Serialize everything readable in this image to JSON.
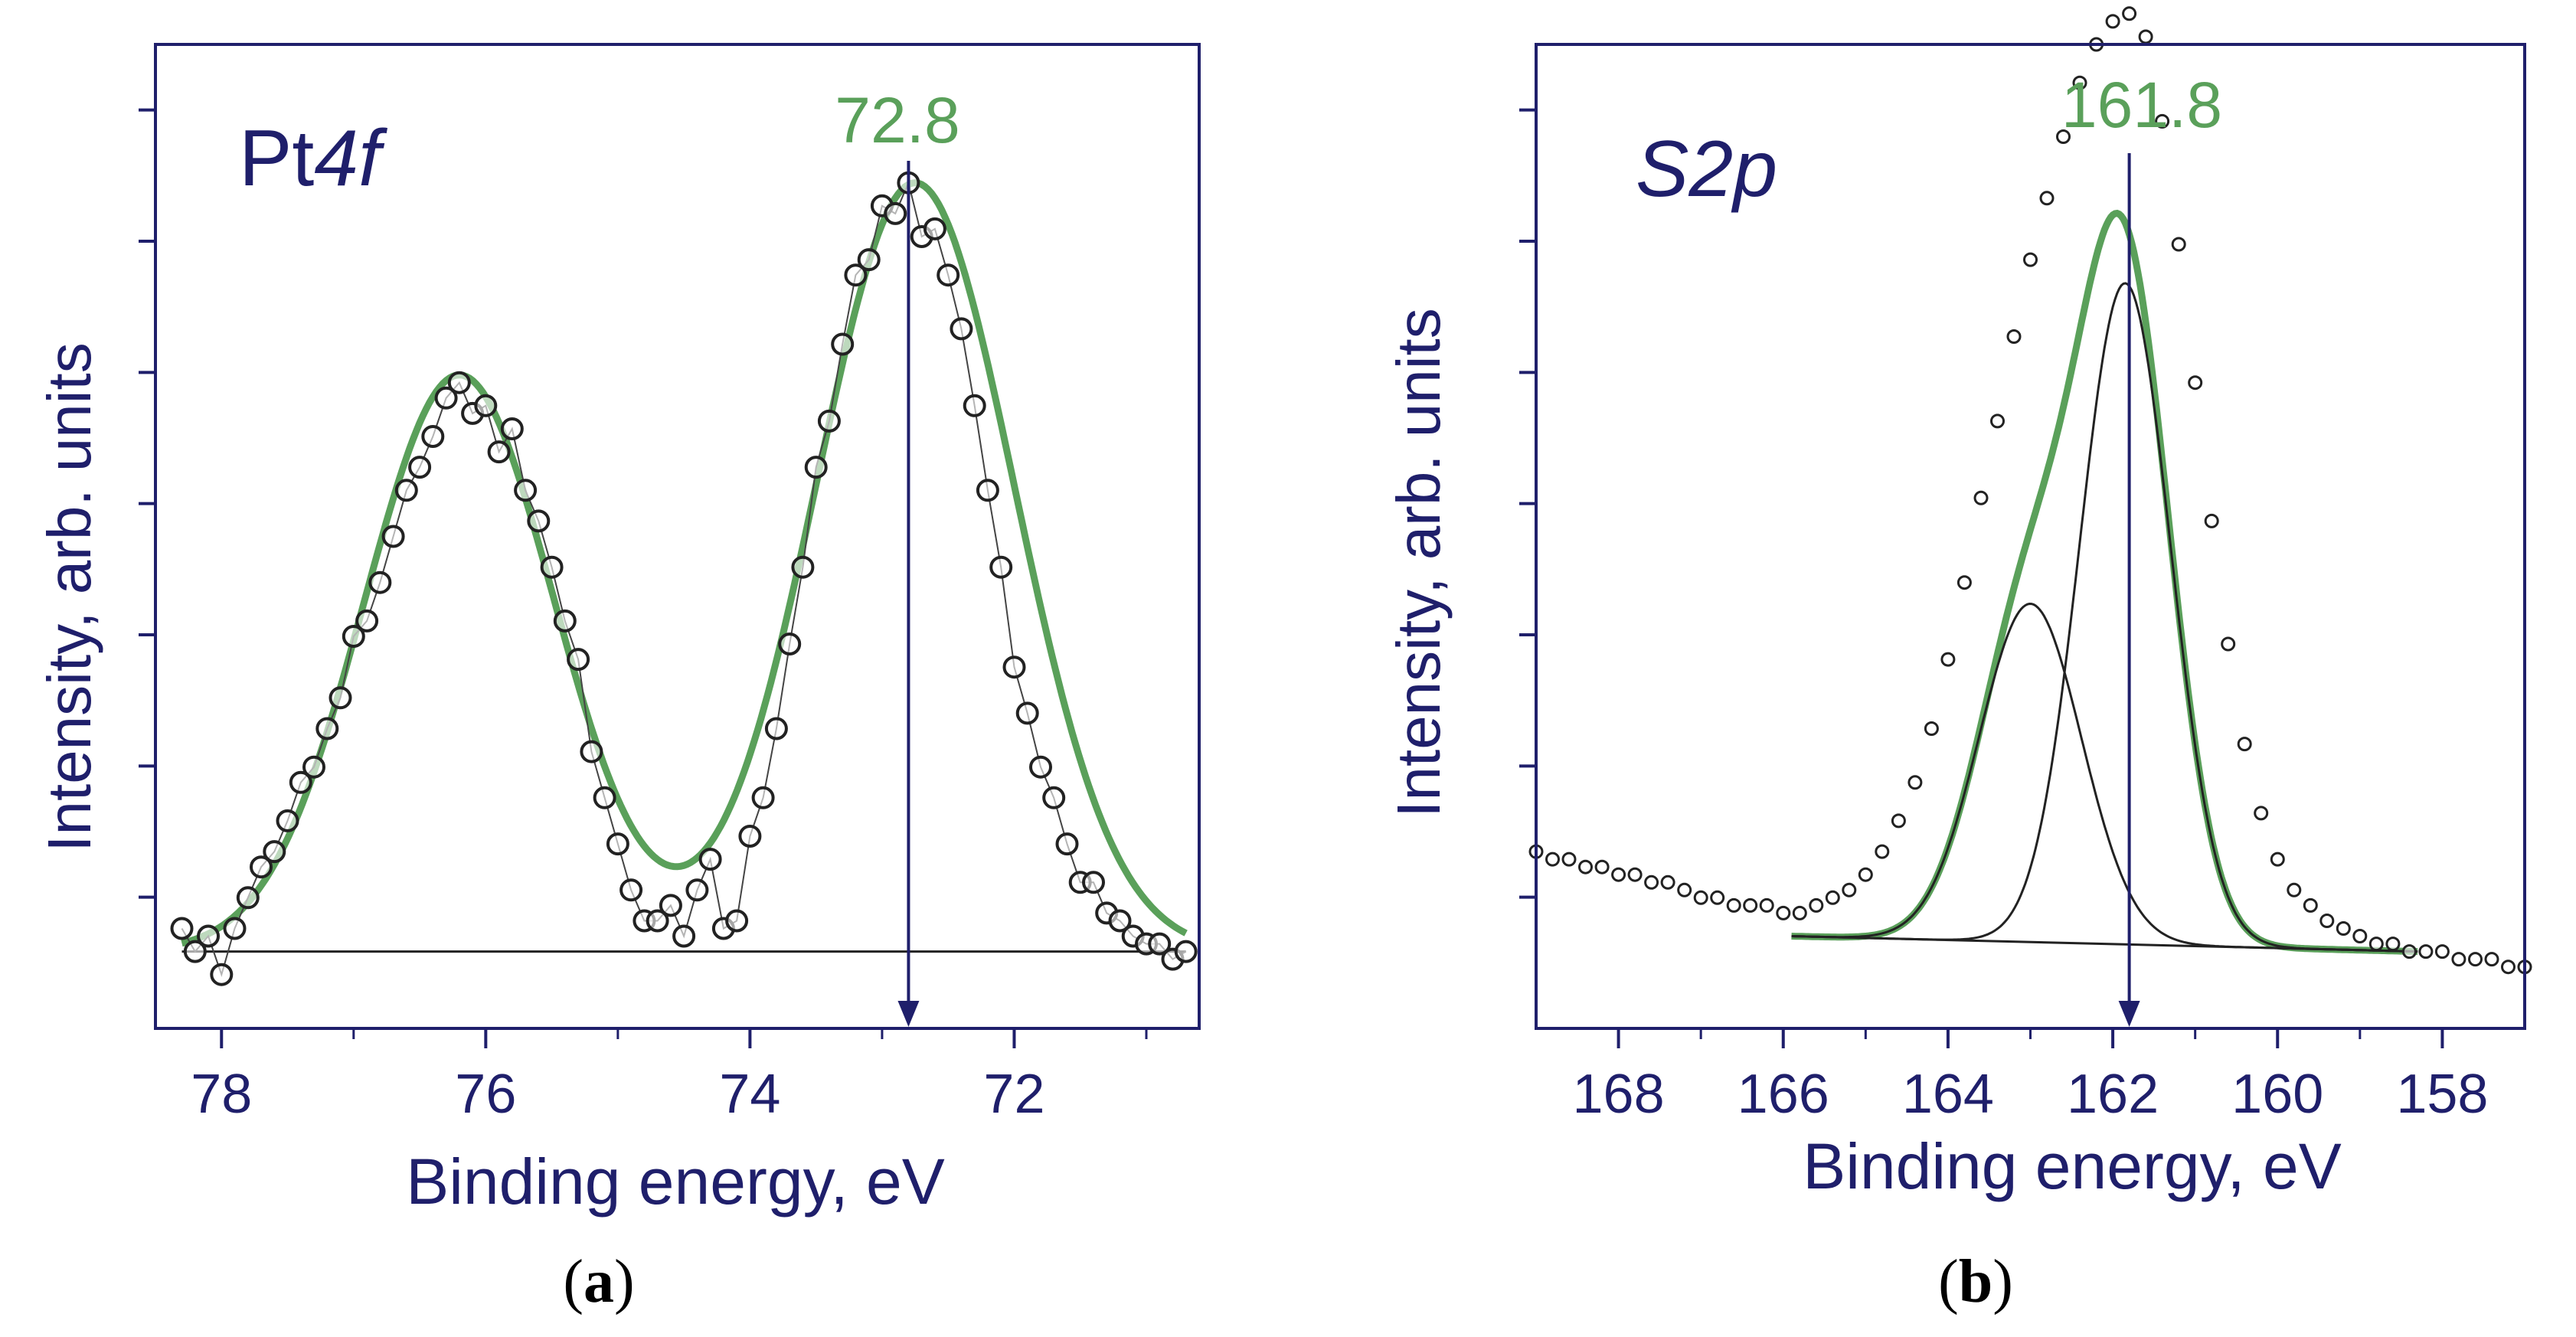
{
  "colors": {
    "frame": "#1f1f6b",
    "label": "#1f1f6b",
    "fit": "#5aa05a",
    "peak_marker": "#1f1f6b",
    "component": "#222222",
    "point_stroke": "#222222"
  },
  "chart_data": [
    {
      "id": "a",
      "type": "scatter",
      "panel_label": "(a)",
      "panel_letter": "a",
      "title_prefix": "Pt",
      "title_italic": "4f",
      "xlabel": "Binding energy, eV",
      "ylabel": "Intensity, arb. units",
      "xlim": [
        78.5,
        70.6
      ],
      "ylim": [
        -0.1,
        1.18
      ],
      "x_reversed": true,
      "xticks": [
        78,
        76,
        74,
        72
      ],
      "y_tick_count": 7,
      "peak_marker": {
        "x": 72.8,
        "label": "72.8"
      },
      "background_line": {
        "x": [
          78.3,
          70.7
        ],
        "y": [
          0.0,
          0.0
        ]
      },
      "fit_peaks": [
        {
          "center": 76.2,
          "height": 0.75,
          "sigma": 0.72
        },
        {
          "center": 72.75,
          "height": 1.0,
          "sigma": 0.75
        }
      ],
      "fit_range": [
        78.3,
        70.7
      ],
      "series": [
        {
          "name": "experimental",
          "x": [
            78.3,
            78.2,
            78.1,
            78.0,
            77.9,
            77.8,
            77.7,
            77.6,
            77.5,
            77.4,
            77.3,
            77.2,
            77.1,
            77.0,
            76.9,
            76.8,
            76.7,
            76.6,
            76.5,
            76.4,
            76.3,
            76.2,
            76.1,
            76.0,
            75.9,
            75.8,
            75.7,
            75.6,
            75.5,
            75.4,
            75.3,
            75.2,
            75.1,
            75.0,
            74.9,
            74.8,
            74.7,
            74.6,
            74.5,
            74.4,
            74.3,
            74.2,
            74.1,
            74.0,
            73.9,
            73.8,
            73.7,
            73.6,
            73.5,
            73.4,
            73.3,
            73.2,
            73.1,
            73.0,
            72.9,
            72.8,
            72.7,
            72.6,
            72.5,
            72.4,
            72.3,
            72.2,
            72.1,
            72.0,
            71.9,
            71.8,
            71.7,
            71.6,
            71.5,
            71.4,
            71.3,
            71.2,
            71.1,
            71.0,
            70.9,
            70.8,
            70.7
          ],
          "y": [
            0.03,
            0.0,
            0.02,
            -0.03,
            0.03,
            0.07,
            0.11,
            0.13,
            0.17,
            0.22,
            0.24,
            0.29,
            0.33,
            0.41,
            0.43,
            0.48,
            0.54,
            0.6,
            0.63,
            0.67,
            0.72,
            0.74,
            0.7,
            0.71,
            0.65,
            0.68,
            0.6,
            0.56,
            0.5,
            0.43,
            0.38,
            0.26,
            0.2,
            0.14,
            0.08,
            0.04,
            0.04,
            0.06,
            0.02,
            0.08,
            0.12,
            0.03,
            0.04,
            0.15,
            0.2,
            0.29,
            0.4,
            0.5,
            0.63,
            0.69,
            0.79,
            0.88,
            0.9,
            0.97,
            0.96,
            1.0,
            0.93,
            0.94,
            0.88,
            0.81,
            0.71,
            0.6,
            0.5,
            0.37,
            0.31,
            0.24,
            0.2,
            0.14,
            0.09,
            0.09,
            0.05,
            0.04,
            0.02,
            0.01,
            0.01,
            -0.01,
            0.0
          ]
        }
      ]
    },
    {
      "id": "b",
      "type": "scatter",
      "panel_label": "(b)",
      "panel_letter": "b",
      "title_prefix": "S",
      "title_italic": "2p",
      "xlabel": "Binding energy, eV",
      "ylabel": "Intensity, arb. units",
      "xlim": [
        169.0,
        157.0
      ],
      "ylim": [
        -0.1,
        1.18
      ],
      "x_reversed": true,
      "xticks": [
        168,
        166,
        164,
        162,
        160,
        158
      ],
      "y_tick_count": 7,
      "peak_marker": {
        "x": 161.8,
        "label": "161.8"
      },
      "background_line": {
        "x": [
          165.9,
          158.3
        ],
        "y": [
          0.02,
          0.0
        ]
      },
      "fit_peaks": [
        {
          "center": 161.85,
          "height": 0.86,
          "sigma": 0.55
        },
        {
          "center": 163.0,
          "height": 0.44,
          "sigma": 0.62
        }
      ],
      "fit_range": [
        165.9,
        158.3
      ],
      "components": [
        {
          "center": 161.85,
          "height": 0.86,
          "sigma": 0.55
        },
        {
          "center": 163.0,
          "height": 0.44,
          "sigma": 0.62
        }
      ],
      "series": [
        {
          "name": "experimental",
          "x": [
            169.0,
            168.8,
            168.6,
            168.4,
            168.2,
            168.0,
            167.8,
            167.6,
            167.4,
            167.2,
            167.0,
            166.8,
            166.6,
            166.4,
            166.2,
            166.0,
            165.8,
            165.6,
            165.4,
            165.2,
            165.0,
            164.8,
            164.6,
            164.4,
            164.2,
            164.0,
            163.8,
            163.6,
            163.4,
            163.2,
            163.0,
            162.8,
            162.6,
            162.4,
            162.2,
            162.0,
            161.8,
            161.6,
            161.4,
            161.2,
            161.0,
            160.8,
            160.6,
            160.4,
            160.2,
            160.0,
            159.8,
            159.6,
            159.4,
            159.2,
            159.0,
            158.8,
            158.6,
            158.4,
            158.2,
            158.0,
            157.8,
            157.6,
            157.4,
            157.2,
            157.0
          ],
          "y": [
            0.13,
            0.12,
            0.12,
            0.11,
            0.11,
            0.1,
            0.1,
            0.09,
            0.09,
            0.08,
            0.07,
            0.07,
            0.06,
            0.06,
            0.06,
            0.05,
            0.05,
            0.06,
            0.07,
            0.08,
            0.1,
            0.13,
            0.17,
            0.22,
            0.29,
            0.38,
            0.48,
            0.59,
            0.69,
            0.8,
            0.9,
            0.98,
            1.06,
            1.13,
            1.18,
            1.21,
            1.22,
            1.19,
            1.08,
            0.92,
            0.74,
            0.56,
            0.4,
            0.27,
            0.18,
            0.12,
            0.08,
            0.06,
            0.04,
            0.03,
            0.02,
            0.01,
            0.01,
            0.0,
            0.0,
            0.0,
            -0.01,
            -0.01,
            -0.01,
            -0.02,
            -0.02
          ]
        }
      ]
    }
  ]
}
